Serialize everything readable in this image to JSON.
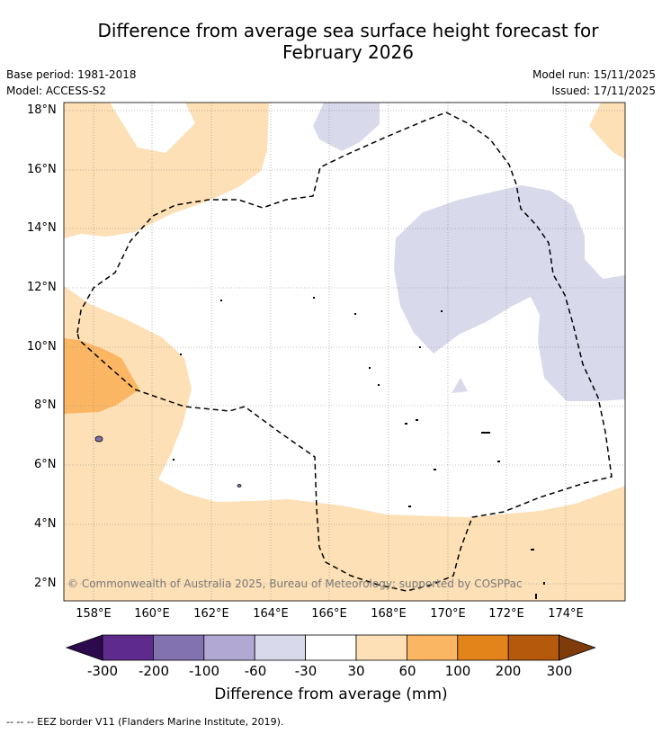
{
  "title": {
    "line1": "Difference from average sea surface height forecast for",
    "line2": "February 2026"
  },
  "meta": {
    "base_period": "Base period: 1981-2018",
    "model": "Model: ACCESS-S2",
    "model_run": "Model run: 15/11/2025",
    "issued": "Issued: 17/11/2025"
  },
  "map": {
    "lat_ticks": [
      "18°N",
      "16°N",
      "14°N",
      "12°N",
      "10°N",
      "8°N",
      "6°N",
      "4°N",
      "2°N"
    ],
    "lon_ticks": [
      "158°E",
      "160°E",
      "162°E",
      "164°E",
      "166°E",
      "168°E",
      "170°E",
      "172°E",
      "174°E"
    ],
    "copyright": "© Commonwealth of Australia 2025, Bureau of Meteorology; supported by COSPPac"
  },
  "colorbar": {
    "tick_labels": [
      "-300",
      "-200",
      "-100",
      "-60",
      "-30",
      "30",
      "60",
      "100",
      "200",
      "300"
    ],
    "colors": [
      "#2d0a4e",
      "#5e2a8c",
      "#8272b0",
      "#b1a9d3",
      "#d9d9ec",
      "#ffffff",
      "#fde0b6",
      "#fbb664",
      "#e3841a",
      "#b55a0c",
      "#7f3c0a"
    ],
    "title": "Difference from average (mm)"
  },
  "footnote": "--  --  -- EEZ border V11 (Flanders Marine Institute, 2019)."
}
